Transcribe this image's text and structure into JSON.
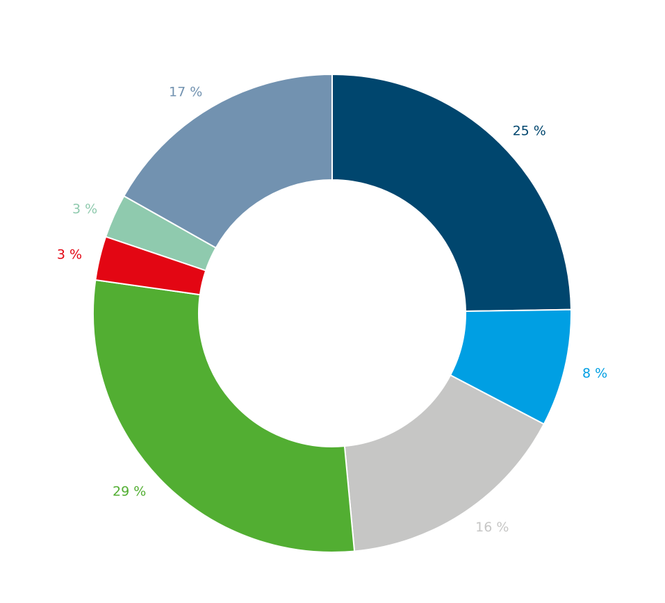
{
  "chart_data": {
    "type": "pie",
    "donut": true,
    "title": "",
    "legend": "none",
    "slices": [
      {
        "label": "25 %",
        "value": 25,
        "color": "#00466e"
      },
      {
        "label": "8 %",
        "value": 8,
        "color": "#009fe3"
      },
      {
        "label": "16 %",
        "value": 16,
        "color": "#c6c6c5"
      },
      {
        "label": "29 %",
        "value": 29,
        "color": "#52ae32"
      },
      {
        "label": "3 %",
        "value": 3,
        "color": "#e30613"
      },
      {
        "label": "3 %",
        "value": 3,
        "color": "#8fcaae"
      },
      {
        "label": "17 %",
        "value": 17,
        "color": "#7292b0"
      }
    ]
  }
}
